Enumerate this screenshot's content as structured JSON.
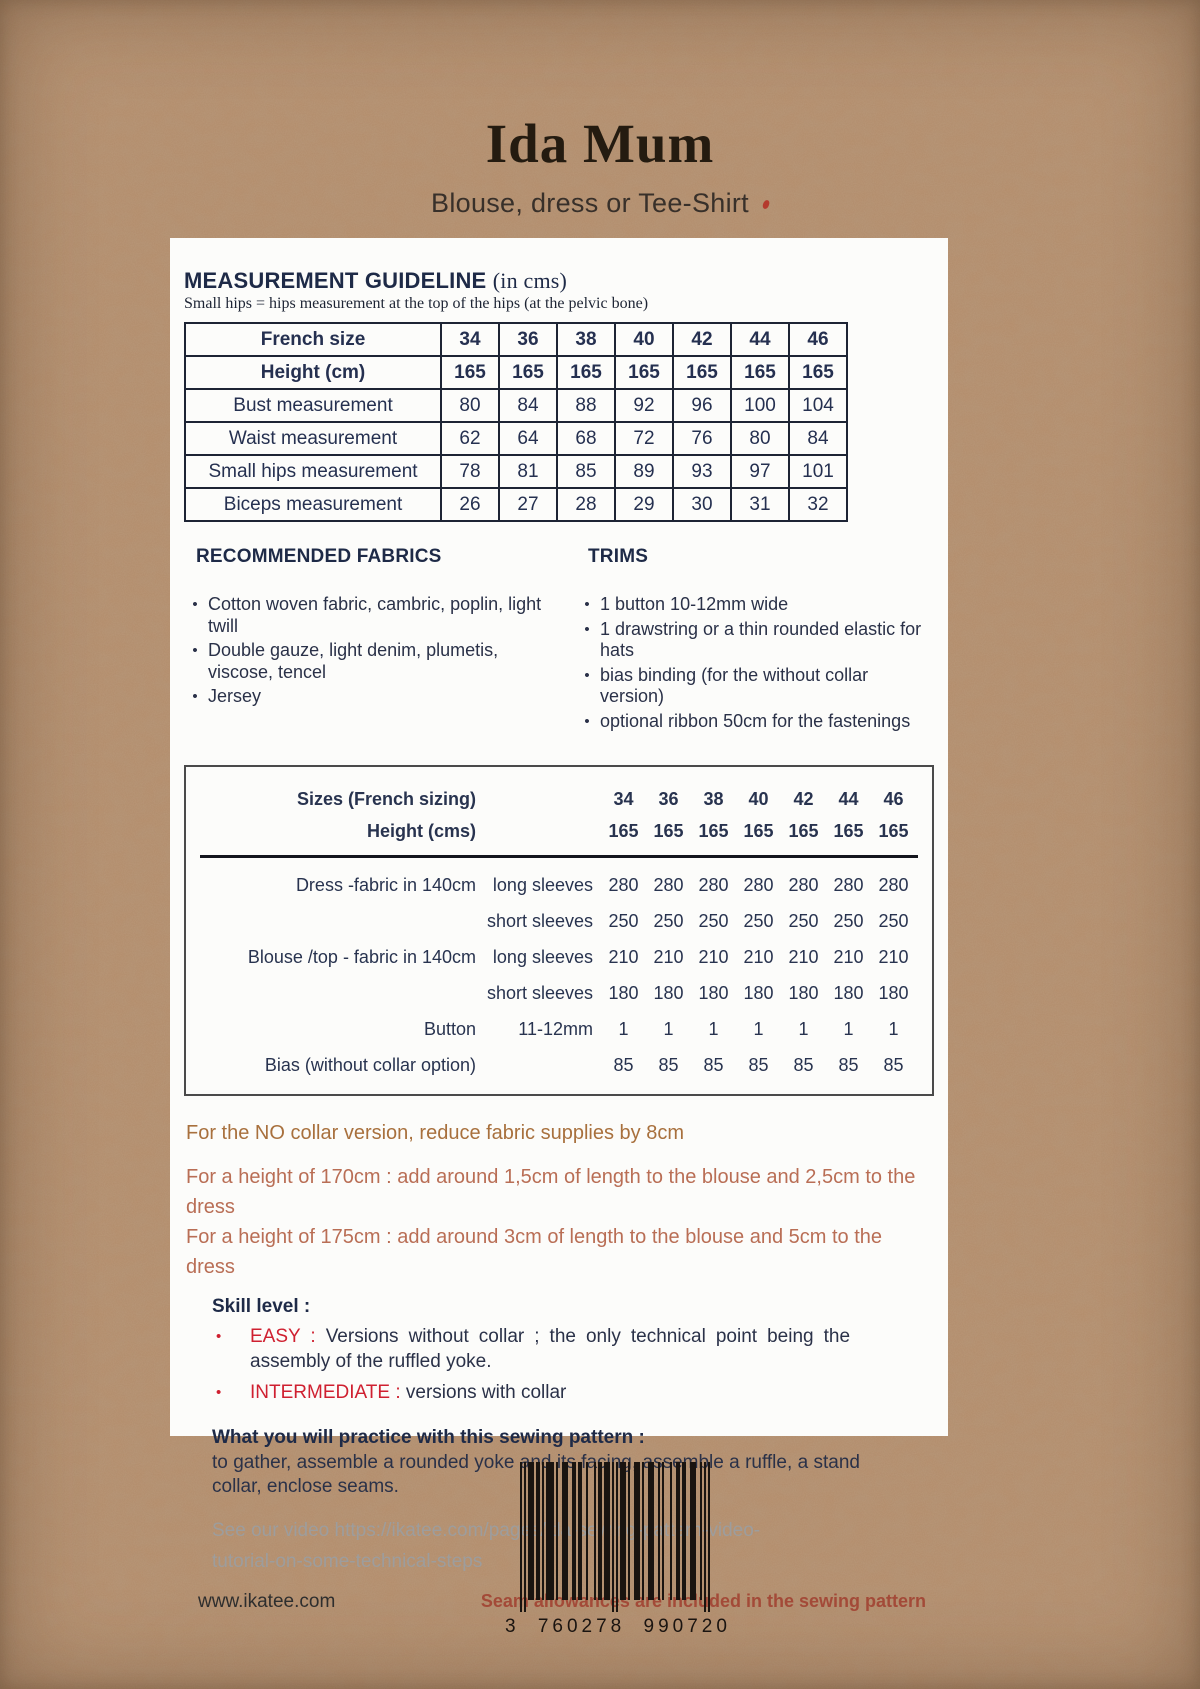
{
  "header": {
    "title": "Ida Mum",
    "subtitle": "Blouse, dress or Tee-Shirt"
  },
  "guideline": {
    "heading": "MEASUREMENT GUIDELINE",
    "unit": "(in cms)",
    "note": "Small hips  = hips measurement at the top of the hips (at the pelvic bone)",
    "rows": [
      {
        "label": "French size",
        "values": [
          "34",
          "36",
          "38",
          "40",
          "42",
          "44",
          "46"
        ]
      },
      {
        "label": "Height (cm)",
        "values": [
          "165",
          "165",
          "165",
          "165",
          "165",
          "165",
          "165"
        ]
      },
      {
        "label": "Bust measurement",
        "values": [
          "80",
          "84",
          "88",
          "92",
          "96",
          "100",
          "104"
        ]
      },
      {
        "label": "Waist measurement",
        "values": [
          "62",
          "64",
          "68",
          "72",
          "76",
          "80",
          "84"
        ]
      },
      {
        "label": "Small hips measurement",
        "values": [
          "78",
          "81",
          "85",
          "89",
          "93",
          "97",
          "101"
        ]
      },
      {
        "label": "Biceps measurement",
        "values": [
          "26",
          "27",
          "28",
          "29",
          "30",
          "31",
          "32"
        ]
      }
    ]
  },
  "fabrics": {
    "heading": "RECOMMENDED FABRICS",
    "items": [
      "Cotton woven fabric, cambric, poplin, light twill",
      "Double gauze, light denim, plumetis, viscose, tencel",
      "Jersey"
    ]
  },
  "trims": {
    "heading": "TRIMS",
    "items": [
      "1 button 10-12mm wide",
      "1 drawstring or a thin rounded elastic for hats",
      "bias binding  (for the without collar version)",
      "optional ribbon 50cm for the fastenings"
    ]
  },
  "supplies": {
    "header": [
      {
        "label": "Sizes (French sizing)",
        "values": [
          "34",
          "36",
          "38",
          "40",
          "42",
          "44",
          "46"
        ]
      },
      {
        "label": "Height (cms)",
        "values": [
          "165",
          "165",
          "165",
          "165",
          "165",
          "165",
          "165"
        ]
      }
    ],
    "rows": [
      {
        "label": "Dress  -fabric in 140cm",
        "sub": "long sleeves",
        "values": [
          "280",
          "280",
          "280",
          "280",
          "280",
          "280",
          "280"
        ]
      },
      {
        "label": "",
        "sub": "short sleeves",
        "values": [
          "250",
          "250",
          "250",
          "250",
          "250",
          "250",
          "250"
        ]
      },
      {
        "label": "Blouse /top - fabric in 140cm",
        "sub": "long sleeves",
        "values": [
          "210",
          "210",
          "210",
          "210",
          "210",
          "210",
          "210"
        ]
      },
      {
        "label": "",
        "sub": "short sleeves",
        "values": [
          "180",
          "180",
          "180",
          "180",
          "180",
          "180",
          "180"
        ]
      },
      {
        "label": "Button",
        "sub": "11-12mm",
        "values": [
          "1",
          "1",
          "1",
          "1",
          "1",
          "1",
          "1"
        ]
      },
      {
        "label": "Bias (without collar option)",
        "sub": "",
        "values": [
          "85",
          "85",
          "85",
          "85",
          "85",
          "85",
          "85"
        ]
      }
    ]
  },
  "notes": [
    "For the NO collar version, reduce fabric supplies by 8cm",
    "For a height of 170cm : add around 1,5cm of length to the blouse and 2,5cm to the dress",
    "For a height of 175cm : add around 3cm of length to the blouse and 5cm to the dress"
  ],
  "skill": {
    "heading": "Skill level :",
    "items": [
      {
        "tag": "EASY : ",
        "text": "Versions without collar ; the only technical point being the assembly of the ruffled yoke."
      },
      {
        "tag": "INTERMEDIATE : ",
        "text": "versions with collar"
      }
    ]
  },
  "practice": {
    "heading": "What you will practice with this sewing pattern :",
    "text": "to gather, assemble a rounded yoke and its facing, assemble a ruffle, a stand collar, enclose seams."
  },
  "video_note": "See our video https://ikatee.com/pages/ida-sewing-pattern-video-tutorial-on-some-technical-steps",
  "footer": {
    "website": "www.ikatee.com",
    "seam_note": "Seam allowances are included in the sewing pattern"
  },
  "barcode": {
    "number": "3 760278 990720"
  },
  "colors": {
    "kraft": "#b28b69",
    "navy": "#253050",
    "accent_red": "#cf2030",
    "note_orange": "#a8703d",
    "note_salmon": "#b96e55",
    "seam_rust": "#a34a38",
    "video_gray": "#9d9d9d"
  }
}
